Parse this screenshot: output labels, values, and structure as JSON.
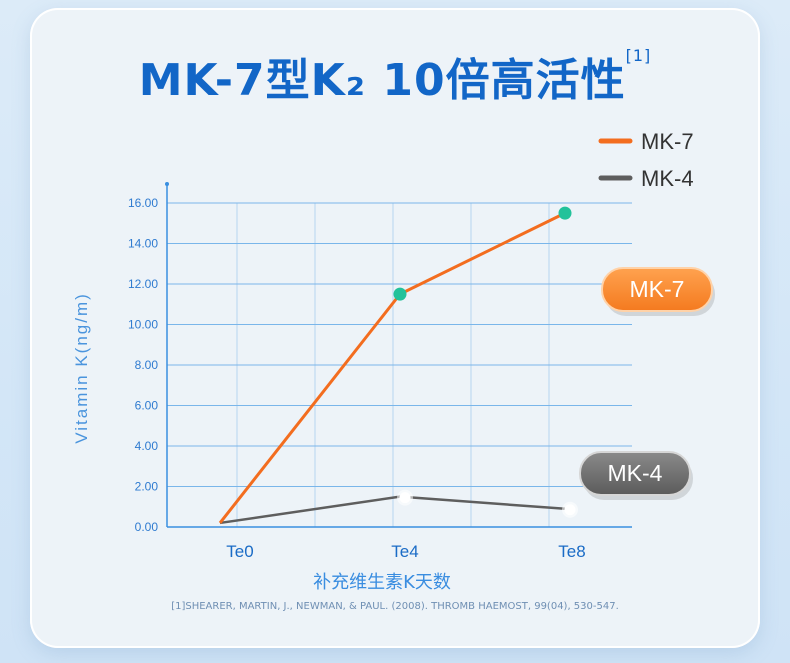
{
  "title": {
    "text": "MK-7型K₂ 10倍高活性",
    "ref": "[1]"
  },
  "colors": {
    "mk7": "#f36d1f",
    "mk4": "#5e5e5e",
    "mk7_point": "#23c29a",
    "mk4_point": "#ffffff",
    "axis": "#3a8fe0",
    "grid": "#7ab6ea",
    "text_blue": "#2f7bd0"
  },
  "chart_data": {
    "type": "line",
    "title": "",
    "xlabel": "补充维生素K天数",
    "ylabel": "Vitamin K(ng/m)",
    "categories": [
      "Te0",
      "Te4",
      "Te8"
    ],
    "ylim": [
      0,
      16
    ],
    "yticks": [
      "0.00",
      "2.00",
      "4.00",
      "6.00",
      "8.00",
      "10.00",
      "12.00",
      "14.00",
      "16.00"
    ],
    "grid": true,
    "legend": "top-right",
    "series": [
      {
        "name": "MK-7",
        "values": [
          0.2,
          11.5,
          15.5
        ],
        "point_label": "MK-7"
      },
      {
        "name": "MK-4",
        "values": [
          0.2,
          1.5,
          0.9
        ],
        "point_label": "MK-4"
      }
    ]
  },
  "footnote": "[1]SHEARER, MARTIN, J., NEWMAN, & PAUL. (2008). THROMB HAEMOST, 99(04), 530-547."
}
